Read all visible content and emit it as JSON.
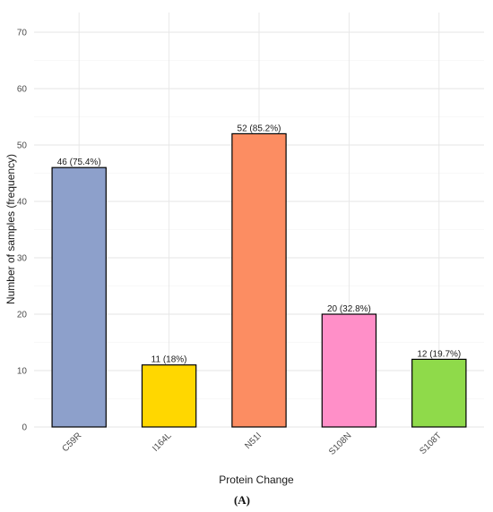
{
  "chart_data": {
    "type": "bar",
    "title": "",
    "xlabel": "Protein Change",
    "ylabel": "Number of samples (frequency)",
    "categories": [
      "C59R",
      "I164L",
      "N51I",
      "S108N",
      "S108T"
    ],
    "values": [
      46,
      11,
      52,
      20,
      12
    ],
    "data_labels": [
      "46 (75.4%)",
      "11 (18%)",
      "52 (85.2%)",
      "20 (32.8%)",
      "12 (19.7%)"
    ],
    "colors": [
      "#8da0cb",
      "#ffd700",
      "#fc8d62",
      "#ff8fc8",
      "#8fda4a"
    ],
    "ylim": [
      0,
      70
    ],
    "yticks": [
      0,
      10,
      20,
      30,
      40,
      50,
      60,
      70
    ],
    "grid": true,
    "legend": "none"
  },
  "panel_label": "(A)"
}
